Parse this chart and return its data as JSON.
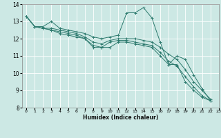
{
  "title": "",
  "xlabel": "Humidex (Indice chaleur)",
  "ylabel": "",
  "xlim": [
    -0.5,
    23
  ],
  "ylim": [
    8,
    14
  ],
  "yticks": [
    8,
    9,
    10,
    11,
    12,
    13,
    14
  ],
  "xticks": [
    0,
    1,
    2,
    3,
    4,
    5,
    6,
    7,
    8,
    9,
    10,
    11,
    12,
    13,
    14,
    15,
    16,
    17,
    18,
    19,
    20,
    21,
    22,
    23
  ],
  "background_color": "#cce8e4",
  "grid_color": "#b0d8d2",
  "line_color": "#2d7a6e",
  "series": [
    [
      13.3,
      12.7,
      12.7,
      13.0,
      12.6,
      12.5,
      12.4,
      12.3,
      12.1,
      12.0,
      12.1,
      12.2,
      13.5,
      13.5,
      13.8,
      13.2,
      11.8,
      10.5,
      11.0,
      10.8,
      9.9,
      9.1,
      8.4
    ],
    [
      13.3,
      12.7,
      12.6,
      12.6,
      12.5,
      12.4,
      12.3,
      12.1,
      11.8,
      11.7,
      11.9,
      12.0,
      12.0,
      12.0,
      11.9,
      11.8,
      11.5,
      11.1,
      10.8,
      10.2,
      9.5,
      9.0,
      8.5
    ],
    [
      13.3,
      12.7,
      12.6,
      12.5,
      12.4,
      12.3,
      12.2,
      12.0,
      11.6,
      11.5,
      11.8,
      11.9,
      11.9,
      11.8,
      11.7,
      11.6,
      11.2,
      10.7,
      10.4,
      9.8,
      9.2,
      8.7,
      8.4
    ],
    [
      13.3,
      12.7,
      12.6,
      12.5,
      12.3,
      12.2,
      12.1,
      12.0,
      11.5,
      11.5,
      11.5,
      11.8,
      11.8,
      11.7,
      11.6,
      11.5,
      11.0,
      10.5,
      10.5,
      9.5,
      9.0,
      8.6,
      8.4
    ]
  ],
  "fig_width": 3.2,
  "fig_height": 2.0,
  "dpi": 100
}
